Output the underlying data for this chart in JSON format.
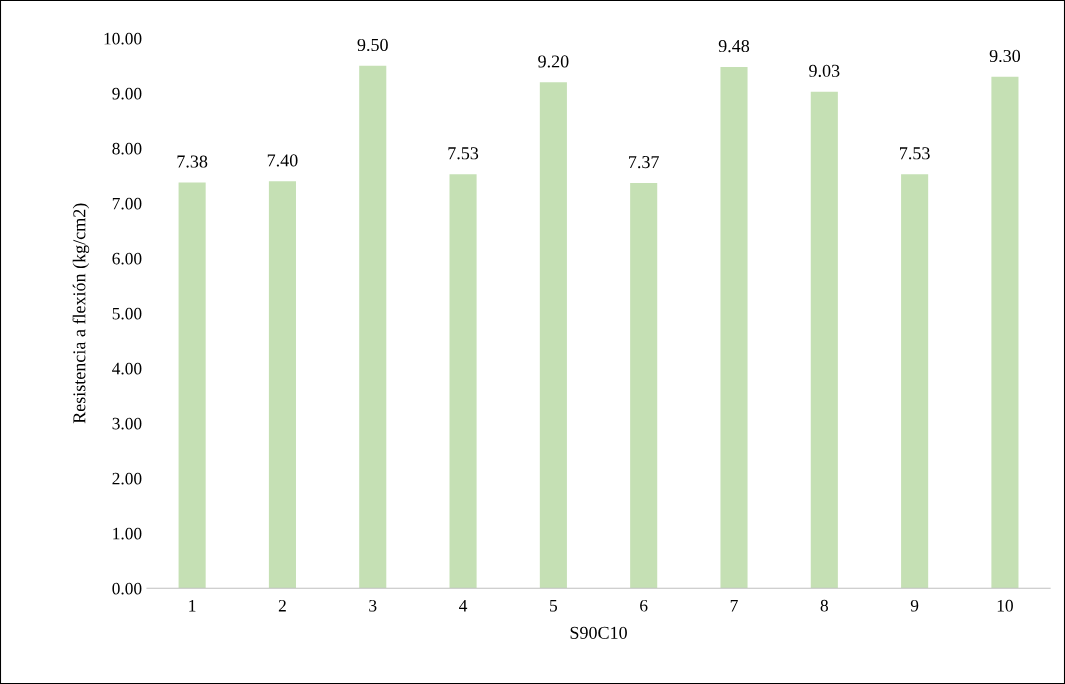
{
  "chart_data": {
    "type": "bar",
    "xlabel": "S90C10",
    "ylabel": "Resistencia a flexión (kg/cm2)",
    "categories": [
      "1",
      "2",
      "3",
      "4",
      "5",
      "6",
      "7",
      "8",
      "9",
      "10"
    ],
    "values": [
      7.38,
      7.4,
      9.5,
      7.53,
      9.2,
      7.37,
      9.48,
      9.03,
      7.53,
      9.3
    ],
    "value_labels": [
      "7.38",
      "7.40",
      "9.50",
      "7.53",
      "9.20",
      "7.37",
      "9.48",
      "9.03",
      "7.53",
      "9.30"
    ],
    "color": "#c5e0b4",
    "ylim": [
      0,
      10
    ],
    "yticks": [
      {
        "value": 0,
        "label": "0.00"
      },
      {
        "value": 1,
        "label": "1.00"
      },
      {
        "value": 2,
        "label": "2.00"
      },
      {
        "value": 3,
        "label": "3.00"
      },
      {
        "value": 4,
        "label": "4.00"
      },
      {
        "value": 5,
        "label": "5.00"
      },
      {
        "value": 6,
        "label": "6.00"
      },
      {
        "value": 7,
        "label": "7.00"
      },
      {
        "value": 8,
        "label": "8.00"
      },
      {
        "value": 9,
        "label": "9.00"
      },
      {
        "value": 10,
        "label": "10.00"
      }
    ],
    "grid": false,
    "legend": false
  }
}
